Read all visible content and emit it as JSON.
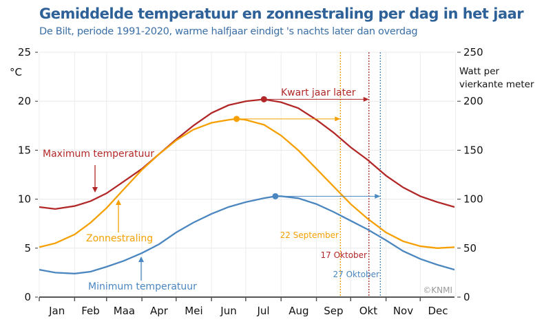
{
  "chart_data": {
    "type": "line",
    "title": "Gemiddelde temperatuur en zonnestraling per dag in het jaar",
    "subtitle": "De Bilt, periode 1991-2020, warme halfjaar eindigt 's nachts later dan overdag",
    "ylabel_left": "°C",
    "ylabel_right": [
      "Watt per",
      "vierkante meter"
    ],
    "ylim_left": [
      0,
      25
    ],
    "ylim_right": [
      0,
      250
    ],
    "yticks_left": [
      0,
      5,
      10,
      15,
      20,
      25
    ],
    "yticks_right": [
      0,
      50,
      100,
      150,
      200,
      250
    ],
    "x_ticklabels": [
      "Jan",
      "Feb",
      "Maa",
      "Apr",
      "Mei",
      "Jun",
      "Jul",
      "Aug",
      "Sep",
      "Okt",
      "Nov",
      "Dec"
    ],
    "grid": true,
    "credit": "©KNMI",
    "series": [
      {
        "name": "Maximum temperatuur",
        "axis": "left",
        "color": "#b22727",
        "x_day": [
          1,
          15,
          32,
          46,
          60,
          75,
          91,
          106,
          121,
          136,
          152,
          167,
          182,
          198,
          213,
          228,
          244,
          259,
          274,
          289,
          305,
          320,
          335,
          350,
          365
        ],
        "values": [
          9.2,
          9.0,
          9.3,
          9.8,
          10.6,
          11.8,
          13.1,
          14.6,
          16.1,
          17.5,
          18.8,
          19.6,
          20.0,
          20.2,
          19.9,
          19.3,
          18.1,
          16.8,
          15.3,
          14.0,
          12.4,
          11.2,
          10.3,
          9.7,
          9.2
        ]
      },
      {
        "name": "Minimum temperatuur",
        "axis": "left",
        "color": "#4a86c0",
        "x_day": [
          1,
          15,
          32,
          46,
          60,
          75,
          91,
          106,
          121,
          136,
          152,
          167,
          182,
          198,
          208,
          213,
          228,
          244,
          259,
          274,
          289,
          305,
          320,
          335,
          350,
          365
        ],
        "values": [
          2.8,
          2.5,
          2.4,
          2.6,
          3.1,
          3.7,
          4.5,
          5.4,
          6.6,
          7.6,
          8.5,
          9.2,
          9.7,
          10.1,
          10.3,
          10.3,
          10.1,
          9.5,
          8.7,
          7.8,
          6.9,
          5.8,
          4.7,
          3.9,
          3.3,
          2.8
        ]
      },
      {
        "name": "Zonnestraling",
        "axis": "right",
        "color": "#f5a000",
        "x_day": [
          1,
          15,
          32,
          46,
          60,
          75,
          91,
          106,
          121,
          136,
          152,
          167,
          174,
          182,
          198,
          213,
          228,
          244,
          259,
          274,
          289,
          305,
          320,
          335,
          350,
          365
        ],
        "values": [
          51,
          55,
          64,
          76,
          91,
          110,
          130,
          146,
          160,
          171,
          178,
          181,
          182,
          181,
          176,
          165,
          150,
          131,
          113,
          95,
          80,
          66,
          57,
          52,
          50,
          51
        ]
      }
    ],
    "annotations": [
      {
        "label": "Kwart jaar later",
        "color": "#b22727"
      },
      {
        "series": "Maximum temperatuur",
        "peak_day": 198,
        "peak_value": 20.2,
        "end_label": "17 Oktober",
        "end_day": 290
      },
      {
        "series": "Zonnestraling",
        "peak_day": 174,
        "peak_value": 182,
        "end_label": "22 September",
        "end_day": 265
      },
      {
        "series": "Minimum temperatuur",
        "peak_day": 208,
        "peak_value": 10.3,
        "end_label": "27 Oktober",
        "end_day": 300
      }
    ]
  }
}
